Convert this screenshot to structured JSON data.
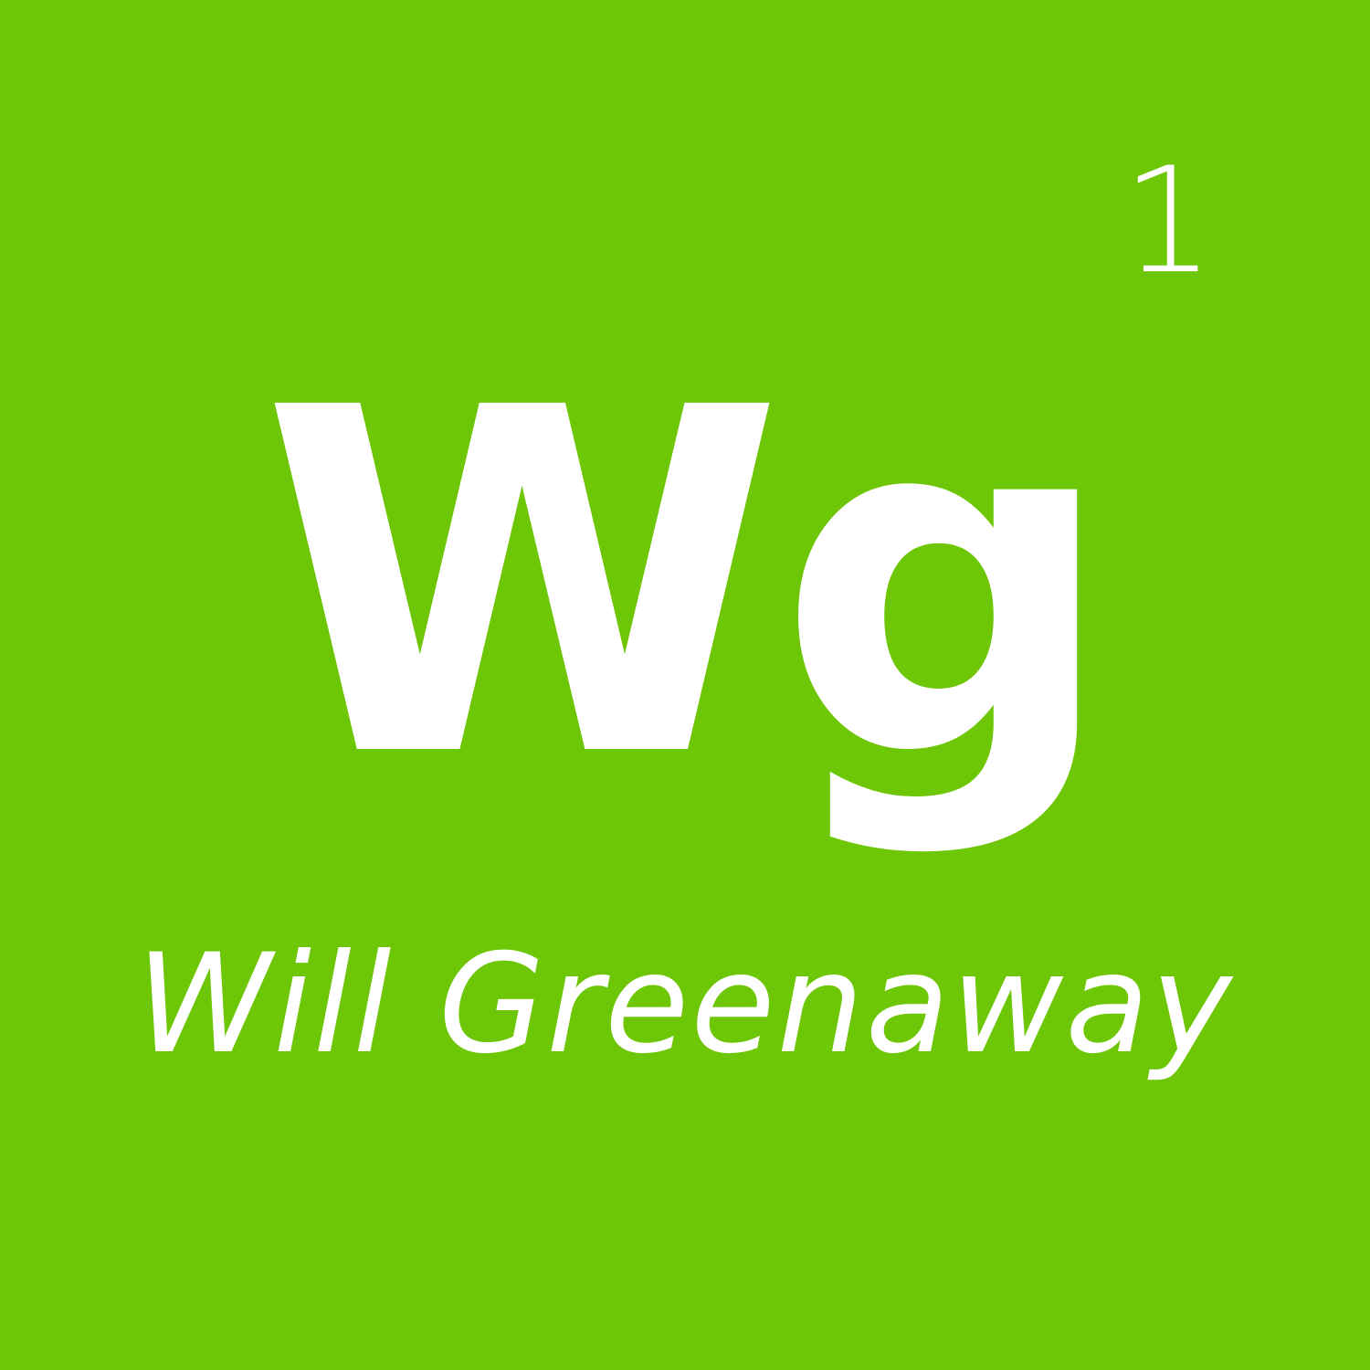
{
  "tile": {
    "atomic_number": "1",
    "symbol": "Wg",
    "name": "Will Greenaway",
    "background_color": "#6dc606",
    "text_color": "#ffffff"
  }
}
